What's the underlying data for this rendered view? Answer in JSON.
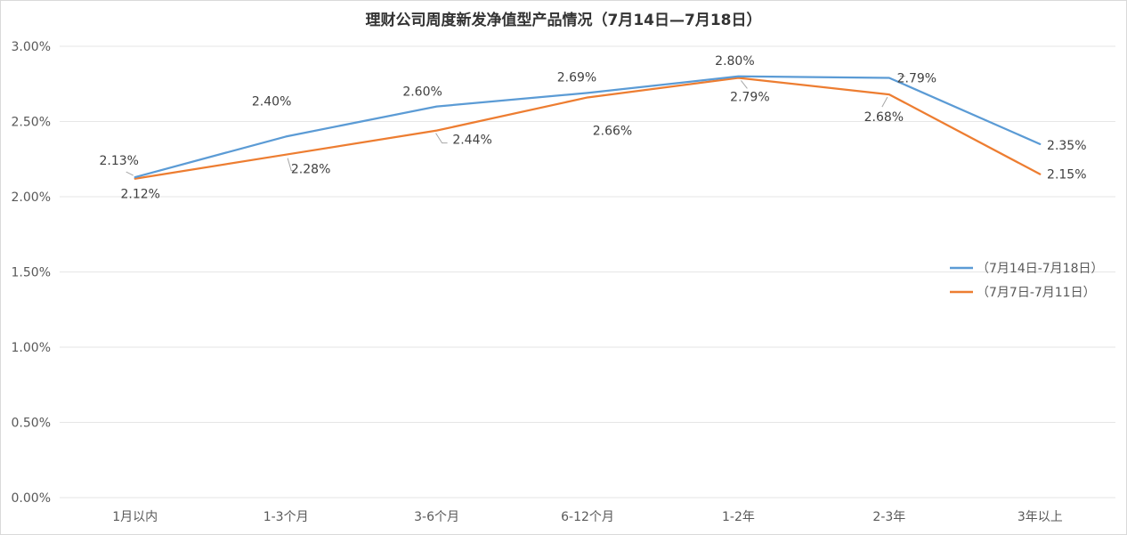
{
  "chart_data": {
    "type": "line",
    "title": "理财公司周度新发净值型产品情况（7月14日—7月18日）",
    "xlabel": "",
    "ylabel": "",
    "categories": [
      "1月以内",
      "1-3个月",
      "3-6个月",
      "6-12个月",
      "1-2年",
      "2-3年",
      "3年以上"
    ],
    "ylim": [
      0,
      3
    ],
    "yticks": [
      "0.00%",
      "0.50%",
      "1.00%",
      "1.50%",
      "2.00%",
      "2.50%",
      "3.00%"
    ],
    "grid": true,
    "legend_position": "right",
    "series": [
      {
        "name": "（7月14日-7月18日）",
        "color": "#5B9BD5",
        "values": [
          2.13,
          2.4,
          2.6,
          2.69,
          2.8,
          2.79,
          2.35
        ],
        "labels": [
          "2.13%",
          "2.40%",
          "2.60%",
          "2.69%",
          "2.80%",
          "2.79%",
          "2.35%"
        ]
      },
      {
        "name": "（7月7日-7月11日）",
        "color": "#ED7D31",
        "values": [
          2.12,
          2.28,
          2.44,
          2.66,
          2.79,
          2.68,
          2.15
        ],
        "labels": [
          "2.12%",
          "2.28%",
          "2.44%",
          "2.66%",
          "2.79%",
          "2.68%",
          "2.15%"
        ]
      }
    ]
  }
}
